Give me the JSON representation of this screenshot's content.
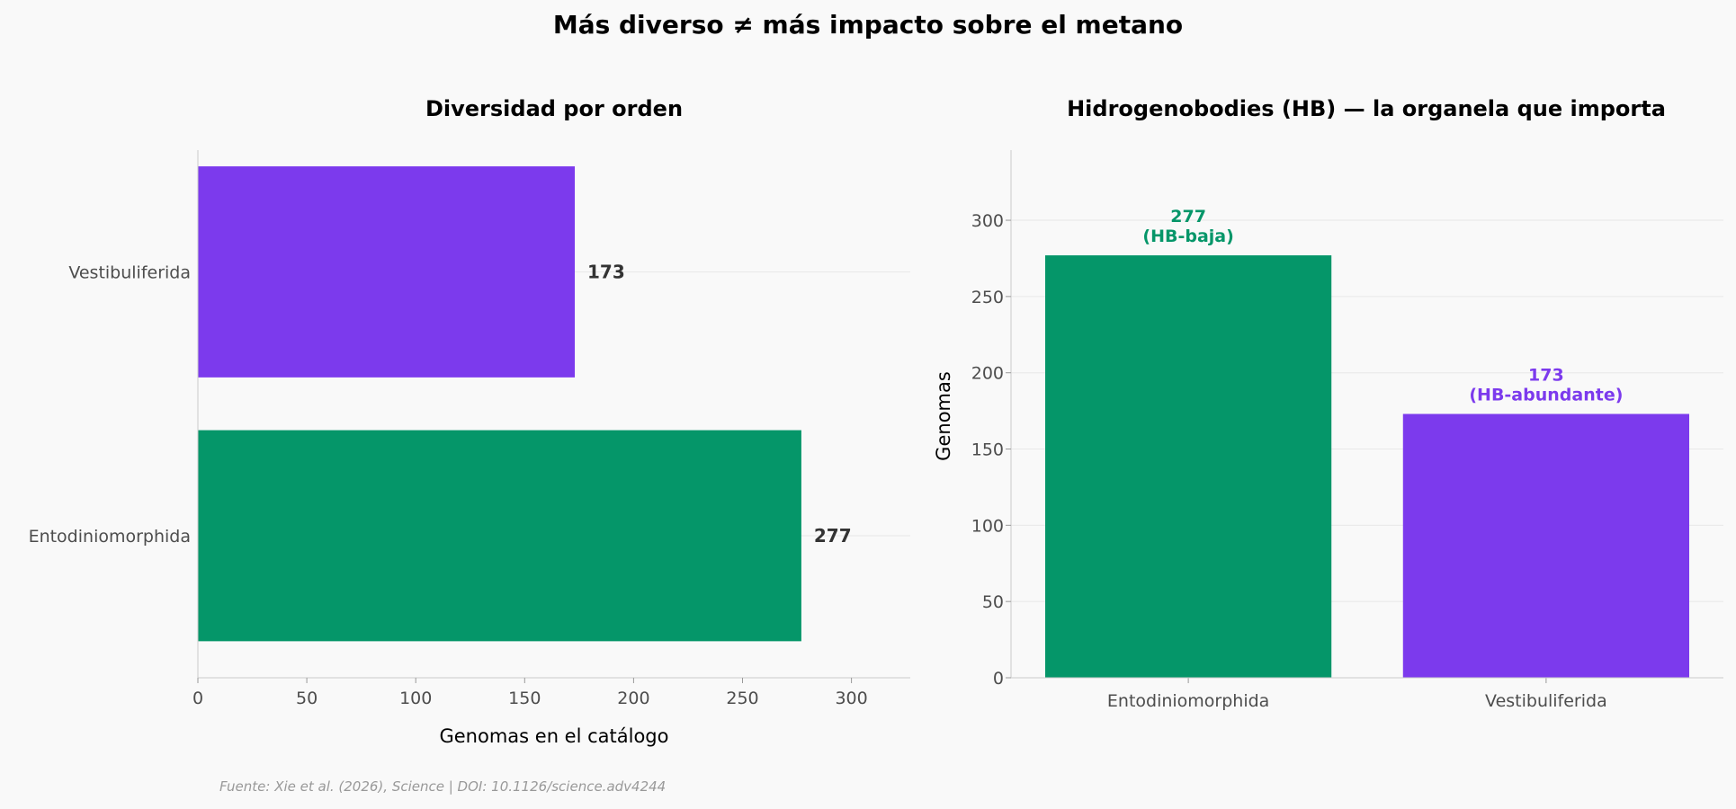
{
  "title": "Más diverso ≠ más impacto sobre el metano",
  "source": "Fuente: Xie et al. (2026), Science | DOI: 10.1126/science.adv4244",
  "colors": {
    "Entodiniomorphida": "#059669",
    "Vestibuliferida": "#7c3aed",
    "grid": "#e8e8e8",
    "spine": "#cccccc"
  },
  "chart_data": [
    {
      "type": "bar",
      "orientation": "horizontal",
      "title": "Diversidad por orden",
      "categories": [
        "Entodiniomorphida",
        "Vestibuliferida"
      ],
      "values": [
        277,
        173
      ],
      "value_labels": [
        "277",
        "173"
      ],
      "xlabel": "Genomas en el catálogo",
      "ylabel": "",
      "xlim": [
        0,
        327
      ],
      "xticks": [
        0,
        50,
        100,
        150,
        200,
        250,
        300
      ],
      "grid": "x-positions only, light"
    },
    {
      "type": "bar",
      "orientation": "vertical",
      "title": "Hidrogenobodies (HB) — la organela que importa",
      "categories": [
        "Entodiniomorphida",
        "Vestibuliferida"
      ],
      "values": [
        277,
        173
      ],
      "value_labels": [
        {
          "value": "277",
          "note": "(HB-baja)"
        },
        {
          "value": "173",
          "note": "(HB-abundante)"
        }
      ],
      "xlabel": "",
      "ylabel": "Genomas",
      "ylim": [
        0,
        346
      ],
      "yticks": [
        0,
        50,
        100,
        150,
        200,
        250,
        300
      ],
      "grid": "horizontal, light"
    }
  ]
}
